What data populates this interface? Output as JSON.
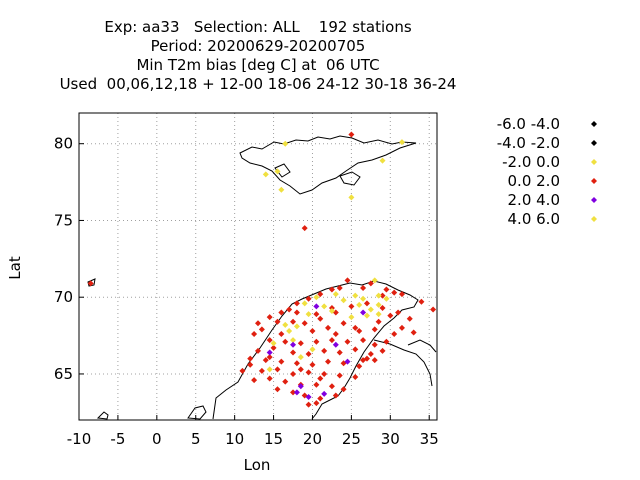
{
  "title": {
    "line1": "Exp: aa33   Selection: ALL    192 stations",
    "line2": "Period: 20200629-20200705",
    "line3": "Min T2m bias [deg C] at  06 UTC",
    "line4": "Used  00,06,12,18 + 12-00 18-06 24-12 30-18 36-24"
  },
  "chart_data": {
    "type": "scatter",
    "xlabel": "Lon",
    "ylabel": "Lat",
    "xlim": [
      -10,
      36
    ],
    "ylim": [
      62,
      82
    ],
    "xticks": [
      -10,
      -5,
      0,
      5,
      10,
      15,
      20,
      25,
      30,
      35
    ],
    "yticks": [
      65,
      70,
      75,
      80
    ],
    "grid": true,
    "legend_position": "right",
    "legend": [
      {
        "label": "-6.0 -4.0",
        "color": "#000000"
      },
      {
        "label": "-4.0 -2.0",
        "color": "#000000"
      },
      {
        "label": "-2.0 0.0",
        "color": "#f0e040"
      },
      {
        "label": "0.0 2.0",
        "color": "#e02010"
      },
      {
        "label": "2.0 4.0",
        "color": "#8000e0"
      },
      {
        "label": "4.0 6.0",
        "color": "#f0e040"
      }
    ],
    "series": [
      {
        "name": "0.0 2.0",
        "color": "#e02010",
        "points": [
          [
            -8.5,
            70.9
          ],
          [
            25.0,
            80.6
          ],
          [
            19.0,
            74.5
          ],
          [
            35.5,
            69.2
          ],
          [
            34.0,
            69.7
          ],
          [
            31.5,
            70.2
          ],
          [
            30.5,
            70.3
          ],
          [
            29.5,
            70.5
          ],
          [
            29.0,
            70.1
          ],
          [
            27.5,
            70.9
          ],
          [
            26.5,
            70.6
          ],
          [
            24.5,
            71.1
          ],
          [
            23.5,
            70.6
          ],
          [
            22.5,
            70.5
          ],
          [
            21.0,
            70.2
          ],
          [
            19.5,
            69.9
          ],
          [
            18.0,
            69.6
          ],
          [
            17.0,
            69.2
          ],
          [
            16.0,
            69.0
          ],
          [
            14.5,
            68.7
          ],
          [
            15.5,
            68.4
          ],
          [
            17.5,
            68.4
          ],
          [
            19.0,
            68.3
          ],
          [
            21.0,
            68.6
          ],
          [
            23.0,
            69.0
          ],
          [
            25.0,
            69.4
          ],
          [
            27.0,
            69.6
          ],
          [
            29.0,
            69.3
          ],
          [
            31.0,
            69.0
          ],
          [
            32.5,
            68.6
          ],
          [
            24.0,
            68.3
          ],
          [
            22.0,
            68.0
          ],
          [
            20.0,
            67.8
          ],
          [
            26.0,
            67.8
          ],
          [
            28.0,
            67.9
          ],
          [
            30.5,
            67.6
          ],
          [
            31.5,
            68.0
          ],
          [
            33.0,
            67.7
          ],
          [
            13.5,
            67.9
          ],
          [
            12.5,
            67.6
          ],
          [
            14.5,
            67.2
          ],
          [
            16.5,
            67.1
          ],
          [
            18.5,
            67.0
          ],
          [
            20.5,
            67.1
          ],
          [
            22.5,
            67.2
          ],
          [
            24.5,
            67.1
          ],
          [
            26.5,
            67.2
          ],
          [
            28.0,
            66.9
          ],
          [
            29.5,
            67.1
          ],
          [
            15.0,
            66.7
          ],
          [
            13.0,
            66.5
          ],
          [
            17.5,
            66.4
          ],
          [
            19.5,
            66.3
          ],
          [
            21.5,
            66.5
          ],
          [
            23.5,
            66.4
          ],
          [
            25.5,
            66.6
          ],
          [
            27.5,
            66.3
          ],
          [
            29.0,
            66.5
          ],
          [
            12.0,
            66.0
          ],
          [
            14.0,
            65.9
          ],
          [
            16.0,
            65.8
          ],
          [
            18.0,
            65.7
          ],
          [
            20.0,
            65.6
          ],
          [
            22.0,
            65.8
          ],
          [
            24.0,
            65.7
          ],
          [
            26.0,
            65.5
          ],
          [
            28.0,
            65.9
          ],
          [
            11.0,
            65.2
          ],
          [
            13.5,
            65.2
          ],
          [
            15.5,
            65.3
          ],
          [
            17.5,
            65.0
          ],
          [
            19.5,
            65.1
          ],
          [
            21.5,
            65.0
          ],
          [
            23.5,
            64.9
          ],
          [
            25.5,
            64.8
          ],
          [
            12.5,
            64.6
          ],
          [
            14.5,
            64.7
          ],
          [
            16.5,
            64.5
          ],
          [
            18.5,
            64.3
          ],
          [
            20.5,
            64.3
          ],
          [
            22.5,
            64.2
          ],
          [
            24.0,
            64.0
          ],
          [
            15.5,
            64.0
          ],
          [
            17.5,
            63.8
          ],
          [
            19.0,
            63.6
          ],
          [
            21.0,
            63.4
          ],
          [
            23.0,
            63.6
          ],
          [
            19.5,
            63.0
          ],
          [
            20.5,
            63.1
          ],
          [
            13.0,
            68.3
          ],
          [
            27.0,
            66.0
          ],
          [
            18.0,
            69.0
          ],
          [
            20.5,
            68.9
          ],
          [
            22.5,
            69.3
          ],
          [
            28.5,
            68.4
          ],
          [
            30.0,
            68.8
          ],
          [
            25.5,
            68.0
          ],
          [
            23.0,
            67.6
          ],
          [
            16.0,
            67.6
          ],
          [
            12.0,
            65.6
          ],
          [
            26.5,
            65.9
          ],
          [
            21.0,
            64.7
          ],
          [
            14.5,
            66.1
          ],
          [
            18.5,
            65.3
          ]
        ]
      },
      {
        "name": "-2.0 0.0",
        "color": "#f0e040",
        "points": [
          [
            16.5,
            80.0
          ],
          [
            31.5,
            80.1
          ],
          [
            29.0,
            78.9
          ],
          [
            15.5,
            78.2
          ],
          [
            14.0,
            78.0
          ],
          [
            16.0,
            77.0
          ],
          [
            25.0,
            76.5
          ],
          [
            26.5,
            69.9
          ],
          [
            27.5,
            69.2
          ],
          [
            28.5,
            70.1
          ],
          [
            25.5,
            70.1
          ],
          [
            24.0,
            69.8
          ],
          [
            22.5,
            69.1
          ],
          [
            21.5,
            69.4
          ],
          [
            19.5,
            68.9
          ],
          [
            18.0,
            68.1
          ],
          [
            17.0,
            67.8
          ],
          [
            16.5,
            68.2
          ],
          [
            15.0,
            67.0
          ],
          [
            20.0,
            66.6
          ],
          [
            18.5,
            66.1
          ],
          [
            14.5,
            65.3
          ],
          [
            27.0,
            68.8
          ],
          [
            28.5,
            69.5
          ],
          [
            25.0,
            68.7
          ],
          [
            17.5,
            67.2
          ],
          [
            20.5,
            70.0
          ],
          [
            26.0,
            69.5
          ],
          [
            29.5,
            69.9
          ],
          [
            23.0,
            70.2
          ],
          [
            19.0,
            69.6
          ],
          [
            28.0,
            71.1
          ],
          [
            28.5,
            68.9
          ]
        ]
      },
      {
        "name": "2.0 4.0",
        "color": "#8000e0",
        "points": [
          [
            20.5,
            69.4
          ],
          [
            26.5,
            69.0
          ],
          [
            17.5,
            66.9
          ],
          [
            14.5,
            66.4
          ],
          [
            23.0,
            66.9
          ],
          [
            24.5,
            65.8
          ],
          [
            19.5,
            63.5
          ],
          [
            21.5,
            63.7
          ],
          [
            18.0,
            63.8
          ],
          [
            18.5,
            64.2
          ]
        ]
      }
    ]
  }
}
